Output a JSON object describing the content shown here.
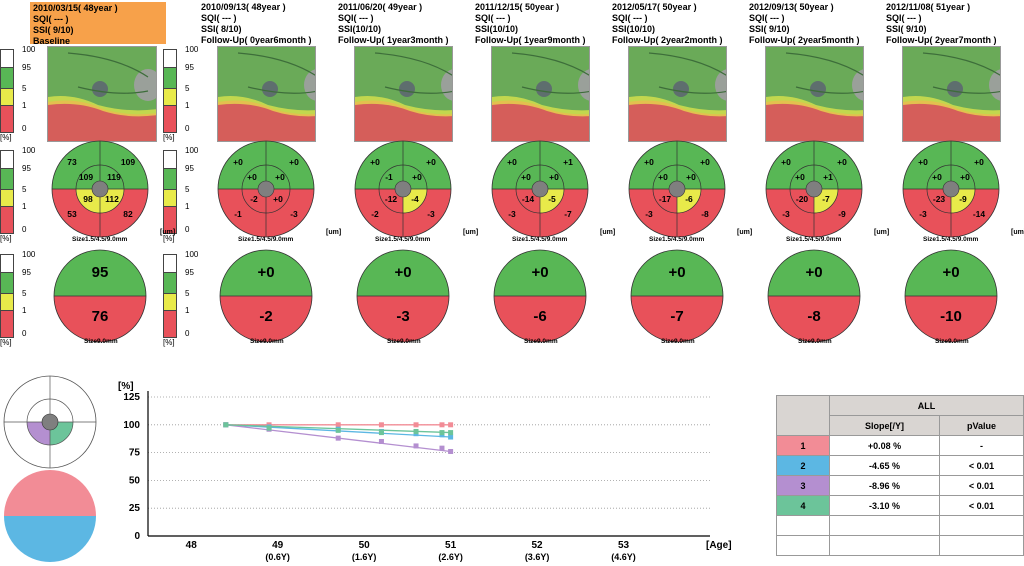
{
  "visits": [
    {
      "date": "2010/03/15( 48year )",
      "sqi": "SQI( --- )",
      "ssi": "SSI( 9/10)",
      "follow": "Baseline",
      "sector": {
        "ul": "73",
        "ur": "109",
        "il": "109",
        "ir": "119",
        "bl": "53",
        "br": "82",
        "cl": "98",
        "cr": "112"
      },
      "overall": {
        "top": "95",
        "bottom": "76"
      }
    },
    {
      "date": "2010/09/13( 48year )",
      "sqi": "SQI( --- )",
      "ssi": "SSI( 8/10)",
      "follow": "Follow-Up( 0year6month )",
      "sector": {
        "ul": "+0",
        "ur": "+0",
        "il": "+0",
        "ir": "+0",
        "bl": "-1",
        "br": "-3",
        "cl": "-2",
        "cr": "+0"
      },
      "overall": {
        "top": "+0",
        "bottom": "-2"
      }
    },
    {
      "date": "2011/06/20( 49year )",
      "sqi": "SQI( --- )",
      "ssi": "SSI(10/10)",
      "follow": "Follow-Up( 1year3month )",
      "sector": {
        "ul": "+0",
        "ur": "+0",
        "il": "-1",
        "ir": "+0",
        "bl": "-2",
        "br": "-3",
        "cl": "-12",
        "cr": "-4"
      },
      "overall": {
        "top": "+0",
        "bottom": "-3"
      }
    },
    {
      "date": "2011/12/15( 50year )",
      "sqi": "SQI( --- )",
      "ssi": "SSI(10/10)",
      "follow": "Follow-Up( 1year9month )",
      "sector": {
        "ul": "+0",
        "ur": "+1",
        "il": "+0",
        "ir": "+0",
        "bl": "-3",
        "br": "-7",
        "cl": "-14",
        "cr": "-5"
      },
      "overall": {
        "top": "+0",
        "bottom": "-6"
      }
    },
    {
      "date": "2012/05/17( 50year )",
      "sqi": "SQI( --- )",
      "ssi": "SSI(10/10)",
      "follow": "Follow-Up( 2year2month )",
      "sector": {
        "ul": "+0",
        "ur": "+0",
        "il": "+0",
        "ir": "+0",
        "bl": "-3",
        "br": "-8",
        "cl": "-17",
        "cr": "-6"
      },
      "overall": {
        "top": "+0",
        "bottom": "-7"
      }
    },
    {
      "date": "2012/09/13( 50year )",
      "sqi": "SQI( --- )",
      "ssi": "SSI( 9/10)",
      "follow": "Follow-Up( 2year5month )",
      "sector": {
        "ul": "+0",
        "ur": "+0",
        "il": "+0",
        "ir": "+1",
        "bl": "-3",
        "br": "-9",
        "cl": "-20",
        "cr": "-7"
      },
      "overall": {
        "top": "+0",
        "bottom": "-8"
      }
    },
    {
      "date": "2012/11/08( 51year )",
      "sqi": "SQI( --- )",
      "ssi": "SSI( 9/10)",
      "follow": "Follow-Up( 2year7month )",
      "sector": {
        "ul": "+0",
        "ur": "+0",
        "il": "+0",
        "ir": "+0",
        "bl": "-3",
        "br": "-14",
        "cl": "-23",
        "cr": "-9"
      },
      "overall": {
        "top": "+0",
        "bottom": "-10"
      }
    }
  ],
  "scale": {
    "t100": "100",
    "t95": "95",
    "t5": "5",
    "t1": "1",
    "t0": "0",
    "pct": "[%]"
  },
  "labels": {
    "um": "[um]",
    "size_sector": "Size1.5/4.5/9.0mm",
    "size_overall": "Size9.0mm"
  },
  "colors": {
    "green": "#58b755",
    "yellow": "#e8ea4a",
    "red": "#e8515a",
    "grey": "#7f7f7f",
    "series1": "#f28c96",
    "series2": "#5cb7e3",
    "series3": "#b48fd0",
    "series4": "#6cc49a"
  },
  "chart_data": {
    "type": "line",
    "ylabel": "[%]",
    "xlabel": "[Age]",
    "ylim": [
      0,
      125
    ],
    "yticks": [
      "0",
      "25",
      "50",
      "75",
      "100",
      "125"
    ],
    "xticks": [
      {
        "v": 48,
        "label": "48",
        "sub": ""
      },
      {
        "v": 49,
        "label": "49",
        "sub": "(0.6Y)"
      },
      {
        "v": 50,
        "label": "50",
        "sub": "(1.6Y)"
      },
      {
        "v": 51,
        "label": "51",
        "sub": "(2.6Y)"
      },
      {
        "v": 52,
        "label": "52",
        "sub": "(3.6Y)"
      },
      {
        "v": 53,
        "label": "53",
        "sub": "(4.6Y)"
      }
    ],
    "xlim": [
      47.5,
      54
    ],
    "series": [
      {
        "name": "1",
        "color": "#f28c96",
        "x": [
          48.4,
          48.9,
          49.7,
          50.2,
          50.6,
          50.9,
          51.0
        ],
        "y": [
          100,
          100,
          100,
          100,
          100,
          100,
          100
        ]
      },
      {
        "name": "2",
        "color": "#5cb7e3",
        "x": [
          48.4,
          48.9,
          49.7,
          50.2,
          50.6,
          50.9,
          51.0
        ],
        "y": [
          100,
          98,
          96,
          94,
          92,
          91,
          89
        ]
      },
      {
        "name": "3",
        "color": "#b48fd0",
        "x": [
          48.4,
          48.9,
          49.7,
          50.2,
          50.6,
          50.9,
          51.0
        ],
        "y": [
          100,
          96,
          88,
          85,
          81,
          79,
          76
        ]
      },
      {
        "name": "4",
        "color": "#6cc49a",
        "x": [
          48.4,
          48.9,
          49.7,
          50.2,
          50.6,
          50.9,
          51.0
        ],
        "y": [
          100,
          97,
          95,
          93,
          94,
          93,
          93
        ]
      }
    ]
  },
  "table": {
    "all": "ALL",
    "slope": "Slope[/Y]",
    "pvalue": "pValue",
    "rows": [
      {
        "n": "1",
        "slope": "+0.08 %",
        "p": "-"
      },
      {
        "n": "2",
        "slope": "-4.65 %",
        "p": "< 0.01"
      },
      {
        "n": "3",
        "slope": "-8.96 %",
        "p": "< 0.01"
      },
      {
        "n": "4",
        "slope": "-3.10 %",
        "p": "< 0.01"
      }
    ]
  }
}
